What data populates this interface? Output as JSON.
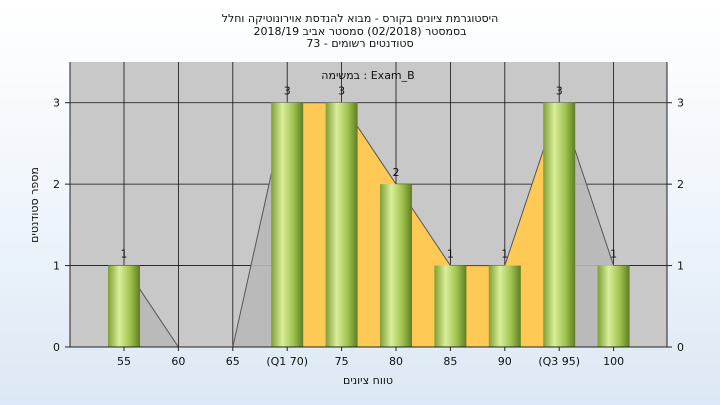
{
  "chart_data": {
    "type": "bar",
    "title": [
      "היסטוגרמת ציונים בקורס - מבוא להנדסת אוירונוטיקה וחלל",
      "בסמסטר  (02/2018)  סמסטר אביב 2018/19",
      "סטודנטים רשומים - 73"
    ],
    "series_label": "במשימה : Exam_B",
    "xlabel": "טווח ציונים",
    "ylabel": "מספר סטודנטים",
    "categories": [
      "55",
      "60",
      "65",
      "(Q1 70)",
      "75",
      "80",
      "85",
      "90",
      "(Q3 95)",
      "100"
    ],
    "values": [
      1,
      0,
      0,
      3,
      3,
      2,
      1,
      1,
      3,
      1
    ],
    "data_labels": [
      "1",
      "",
      "",
      "3",
      "3",
      "2",
      "1",
      "1",
      "3",
      "1"
    ],
    "ylim": [
      0,
      3.5
    ],
    "yticks": [
      "0",
      "1",
      "2",
      "3"
    ],
    "grid": true,
    "colors": {
      "plot_bg": "#c8c8c8",
      "bar_light": "#d9ef9a",
      "bar_mid": "#9fc24e",
      "bar_dark": "#5e7d22",
      "quartile_band": "#ffc955",
      "left_shade": "#b8b8b8"
    }
  }
}
